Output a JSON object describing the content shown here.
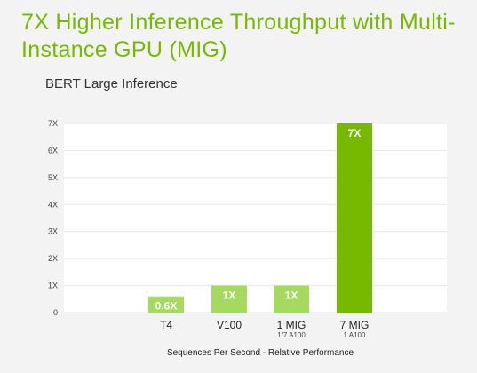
{
  "title": "7X Higher Inference Throughput with Multi-Instance GPU (MIG)",
  "subtitle": "BERT Large Inference",
  "colors": {
    "accent": "#76b900",
    "bar_light": "#a6d95f",
    "bar_dark": "#76b900",
    "background": "#f3f3f3",
    "plot_background": "#ffffff"
  },
  "chart_data": {
    "type": "bar",
    "title": "7X Higher Inference Throughput with Multi-Instance GPU (MIG)",
    "subtitle": "BERT Large Inference",
    "categories": [
      "T4",
      "V100",
      "1 MIG",
      "7 MIG"
    ],
    "category_sublabels": [
      "",
      "",
      "1/7 A100",
      "1 A100"
    ],
    "values": [
      0.6,
      1,
      1,
      7
    ],
    "data_labels": [
      "0.6X",
      "1X",
      "1X",
      "7X"
    ],
    "xlabel": "Sequences Per Second - Relative Performance",
    "ylabel": "",
    "ylim": [
      0,
      7
    ],
    "yticks": [
      0,
      1,
      2,
      3,
      4,
      5,
      6,
      7
    ],
    "ytick_labels": [
      "0",
      "1X",
      "2X",
      "3X",
      "4X",
      "5X",
      "6X",
      "7X"
    ],
    "grid": true,
    "legend": "none"
  }
}
